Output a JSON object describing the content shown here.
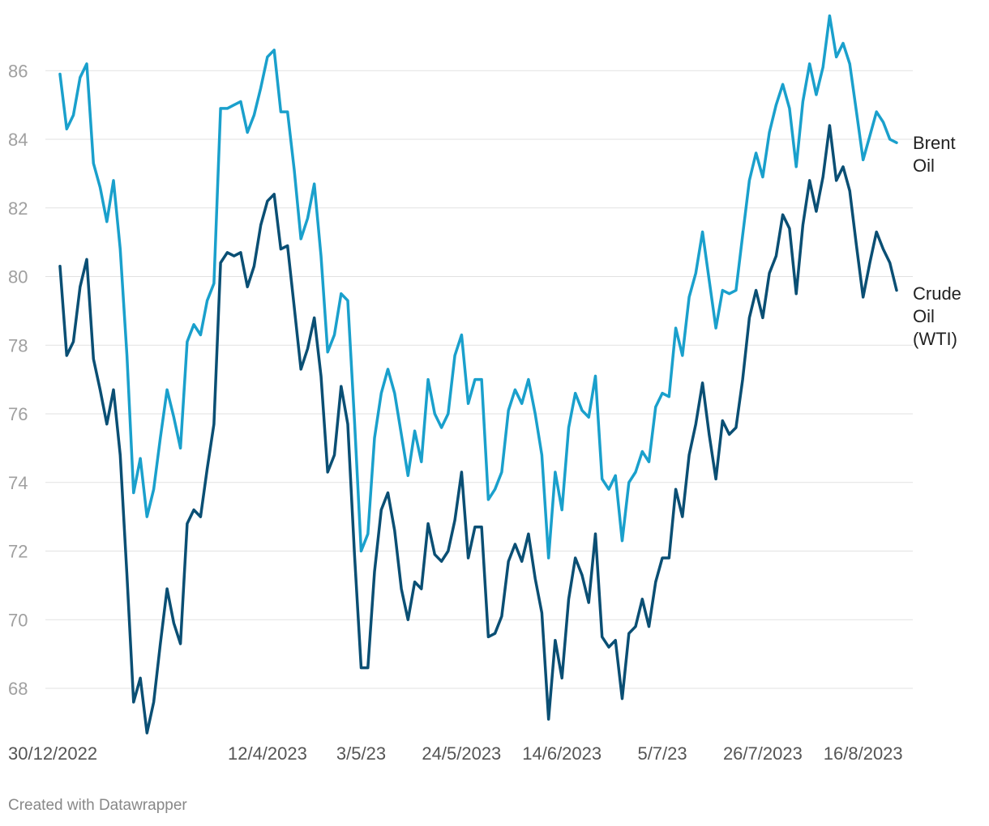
{
  "chart_data": {
    "type": "line",
    "title": "",
    "xlabel": "",
    "ylabel": "",
    "ylim": [
      67,
      87.5
    ],
    "y_ticks": [
      68,
      70,
      72,
      74,
      76,
      78,
      80,
      82,
      84,
      86
    ],
    "x_tick_labels": [
      {
        "index": 0,
        "label": "30/12/2022"
      },
      {
        "index": 31,
        "label": "12/4/2023"
      },
      {
        "index": 45,
        "label": "3/5/23"
      },
      {
        "index": 60,
        "label": "24/5/2023"
      },
      {
        "index": 75,
        "label": "14/6/2023"
      },
      {
        "index": 90,
        "label": "5/7/23"
      },
      {
        "index": 105,
        "label": "26/7/2023"
      },
      {
        "index": 120,
        "label": "16/8/2023"
      }
    ],
    "grid": true,
    "legend": "inline-right",
    "series": [
      {
        "name": "Brent Oil",
        "color": "#1aa0cc",
        "values": [
          85.9,
          84.3,
          84.7,
          85.8,
          86.2,
          83.3,
          82.6,
          81.6,
          82.8,
          80.8,
          77.7,
          73.7,
          74.7,
          73.0,
          73.8,
          75.3,
          76.7,
          75.9,
          75.0,
          78.1,
          78.6,
          78.3,
          79.3,
          79.8,
          84.9,
          84.9,
          85.0,
          85.1,
          84.2,
          84.7,
          85.5,
          86.4,
          86.6,
          84.8,
          84.8,
          83.1,
          81.1,
          81.7,
          82.7,
          80.6,
          77.8,
          78.3,
          79.5,
          79.3,
          75.8,
          72.0,
          72.5,
          75.3,
          76.6,
          77.3,
          76.6,
          75.4,
          74.2,
          75.5,
          74.6,
          77.0,
          76.0,
          75.6,
          76.0,
          77.7,
          78.3,
          76.3,
          77.0,
          77.0,
          73.5,
          73.8,
          74.3,
          76.1,
          76.7,
          76.3,
          77.0,
          76.0,
          74.8,
          71.8,
          74.3,
          73.2,
          75.6,
          76.6,
          76.1,
          75.9,
          77.1,
          74.1,
          73.8,
          74.2,
          72.3,
          74.0,
          74.3,
          74.9,
          74.6,
          76.2,
          76.6,
          76.5,
          78.5,
          77.7,
          79.4,
          80.1,
          81.3,
          79.9,
          78.5,
          79.6,
          79.5,
          79.6,
          81.2,
          82.8,
          83.6,
          82.9,
          84.2,
          85.0,
          85.6,
          84.9,
          83.2,
          85.1,
          86.2,
          85.3,
          86.1,
          87.6,
          86.4,
          86.8,
          86.2,
          84.8,
          83.4,
          84.1,
          84.8,
          84.5,
          84.0,
          83.9
        ]
      },
      {
        "name": "Crude Oil (WTI)",
        "color": "#0a4f74",
        "values": [
          80.3,
          77.7,
          78.1,
          79.7,
          80.5,
          77.6,
          76.7,
          75.7,
          76.7,
          74.8,
          71.3,
          67.6,
          68.3,
          66.7,
          67.6,
          69.3,
          70.9,
          69.9,
          69.3,
          72.8,
          73.2,
          73.0,
          74.4,
          75.7,
          80.4,
          80.7,
          80.6,
          80.7,
          79.7,
          80.3,
          81.5,
          82.2,
          82.4,
          80.8,
          80.9,
          79.1,
          77.3,
          77.9,
          78.8,
          77.1,
          74.3,
          74.8,
          76.8,
          75.7,
          71.9,
          68.6,
          68.6,
          71.4,
          73.2,
          73.7,
          72.6,
          70.9,
          70.0,
          71.1,
          70.9,
          72.8,
          71.9,
          71.7,
          72.0,
          72.9,
          74.3,
          71.8,
          72.7,
          72.7,
          69.5,
          69.6,
          70.1,
          71.7,
          72.2,
          71.7,
          72.5,
          71.2,
          70.2,
          67.1,
          69.4,
          68.3,
          70.6,
          71.8,
          71.3,
          70.5,
          72.5,
          69.5,
          69.2,
          69.4,
          67.7,
          69.6,
          69.8,
          70.6,
          69.8,
          71.1,
          71.8,
          71.8,
          73.8,
          73.0,
          74.8,
          75.7,
          76.9,
          75.4,
          74.1,
          75.8,
          75.4,
          75.6,
          77.0,
          78.8,
          79.6,
          78.8,
          80.1,
          80.6,
          81.8,
          81.4,
          79.5,
          81.5,
          82.8,
          81.9,
          82.9,
          84.4,
          82.8,
          83.2,
          82.5,
          80.9,
          79.4,
          80.4,
          81.3,
          80.8,
          80.4,
          79.6
        ]
      }
    ]
  },
  "labels": {
    "brent_line1": "Brent",
    "brent_line2": "Oil",
    "wti_line1": "Crude",
    "wti_line2": "Oil",
    "wti_line3": "(WTI)"
  },
  "footer": {
    "credit": "Created with Datawrapper"
  }
}
